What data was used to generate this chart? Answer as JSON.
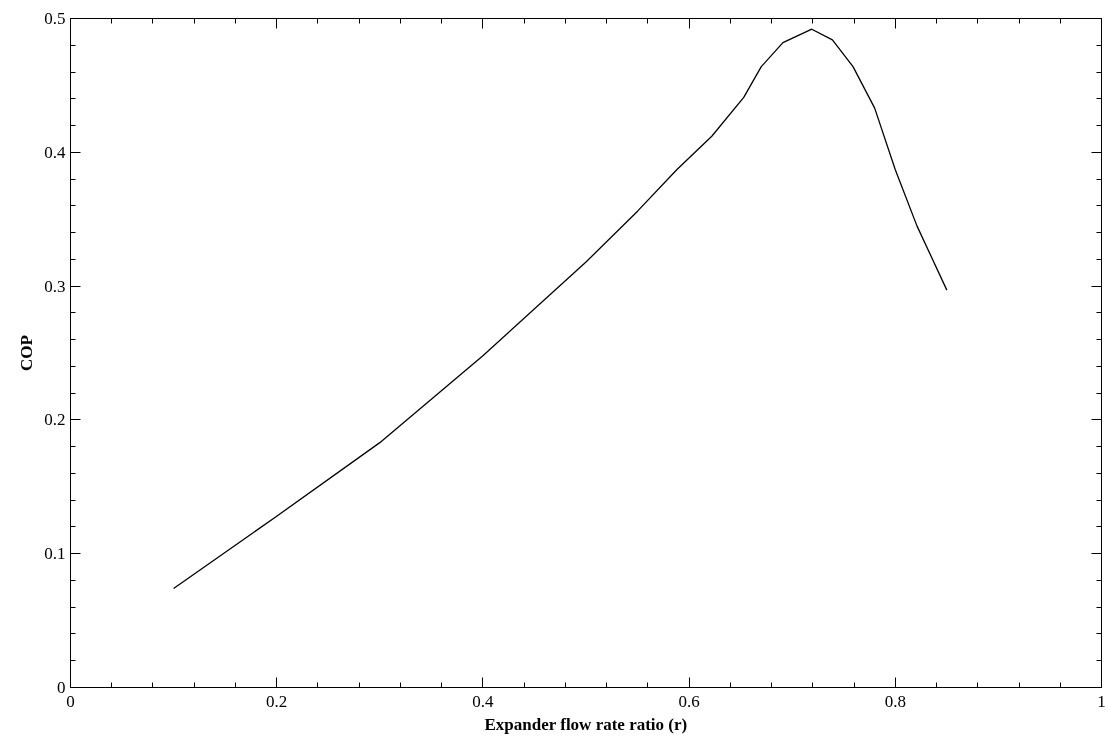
{
  "chart_data": {
    "type": "line",
    "xlabel": "Expander flow rate ratio (r)",
    "ylabel": "COP",
    "x": [
      0.1,
      0.2,
      0.3,
      0.4,
      0.5,
      0.55,
      0.588,
      0.622,
      0.653,
      0.67,
      0.691,
      0.719,
      0.739,
      0.759,
      0.78,
      0.8,
      0.821,
      0.85
    ],
    "series": [
      {
        "color": "#000000",
        "values": [
          0.074,
          0.128,
          0.183,
          0.248,
          0.318,
          0.356,
          0.387,
          0.412,
          0.441,
          0.464,
          0.482,
          0.492,
          0.484,
          0.464,
          0.433,
          0.387,
          0.345,
          0.297
        ]
      }
    ],
    "xlim": [
      0,
      1
    ],
    "ylim": [
      0,
      0.5
    ],
    "xticks": [
      0,
      0.2,
      0.4,
      0.6,
      0.8,
      1
    ],
    "yticks": [
      0,
      0.1,
      0.2,
      0.3,
      0.4,
      0.5
    ],
    "grid": false,
    "marker": "none",
    "line_style": "solid"
  }
}
